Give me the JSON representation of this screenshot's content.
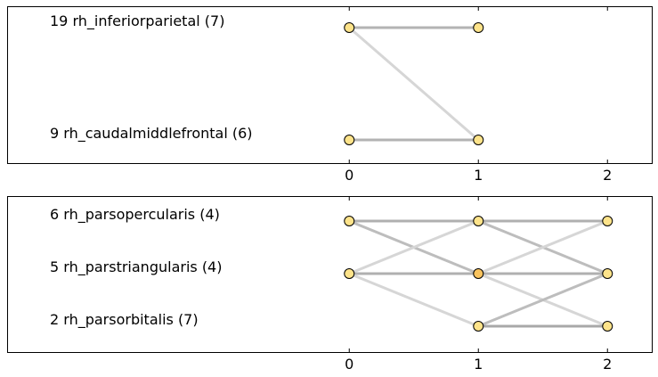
{
  "chart_data": [
    {
      "type": "bump",
      "x": [
        0,
        1,
        2
      ],
      "xlim": [
        -2.65,
        2.35
      ],
      "rows": [
        {
          "label": "19 rh_inferiorparietal (7)"
        },
        {
          "label": "9 rh_caudalmiddlefrontal (6)"
        }
      ],
      "nodes": [
        {
          "x": 0,
          "row": 0,
          "color": "#fde38a"
        },
        {
          "x": 1,
          "row": 0,
          "color": "#fde38a"
        },
        {
          "x": 0,
          "row": 1,
          "color": "#fde38a"
        },
        {
          "x": 1,
          "row": 1,
          "color": "#fde38a"
        }
      ],
      "edges": [
        {
          "from": [
            0,
            0
          ],
          "to": [
            1,
            0
          ],
          "color": "#b3b3b3"
        },
        {
          "from": [
            0,
            0
          ],
          "to": [
            1,
            1
          ],
          "color": "#d6d6d6"
        },
        {
          "from": [
            0,
            1
          ],
          "to": [
            1,
            1
          ],
          "color": "#b3b3b3"
        }
      ],
      "xticks": [
        "0",
        "1",
        "2"
      ]
    },
    {
      "type": "bump",
      "x": [
        0,
        1,
        2
      ],
      "xlim": [
        -2.65,
        2.35
      ],
      "rows": [
        {
          "label": "6 rh_parsopercularis (4)"
        },
        {
          "label": "5 rh_parstriangularis (4)"
        },
        {
          "label": "2 rh_parsorbitalis (7)"
        }
      ],
      "nodes": [
        {
          "x": 0,
          "row": 0,
          "color": "#fde38a"
        },
        {
          "x": 1,
          "row": 0,
          "color": "#fde38a"
        },
        {
          "x": 2,
          "row": 0,
          "color": "#fde38a"
        },
        {
          "x": 0,
          "row": 1,
          "color": "#fde38a"
        },
        {
          "x": 1,
          "row": 1,
          "color": "#f9c35e"
        },
        {
          "x": 2,
          "row": 1,
          "color": "#fde38a"
        },
        {
          "x": 1,
          "row": 2,
          "color": "#fde38a"
        },
        {
          "x": 2,
          "row": 2,
          "color": "#fde38a"
        }
      ],
      "edges": [
        {
          "from": [
            0,
            0
          ],
          "to": [
            1,
            0
          ],
          "color": "#b0b0b0"
        },
        {
          "from": [
            0,
            0
          ],
          "to": [
            1,
            1
          ],
          "color": "#bdbdbd"
        },
        {
          "from": [
            0,
            1
          ],
          "to": [
            1,
            0
          ],
          "color": "#d6d6d6"
        },
        {
          "from": [
            0,
            1
          ],
          "to": [
            1,
            1
          ],
          "color": "#b0b0b0"
        },
        {
          "from": [
            0,
            1
          ],
          "to": [
            1,
            2
          ],
          "color": "#d6d6d6"
        },
        {
          "from": [
            1,
            0
          ],
          "to": [
            2,
            0
          ],
          "color": "#b0b0b0"
        },
        {
          "from": [
            1,
            0
          ],
          "to": [
            2,
            1
          ],
          "color": "#bdbdbd"
        },
        {
          "from": [
            1,
            1
          ],
          "to": [
            2,
            0
          ],
          "color": "#d6d6d6"
        },
        {
          "from": [
            1,
            1
          ],
          "to": [
            2,
            1
          ],
          "color": "#b0b0b0"
        },
        {
          "from": [
            1,
            1
          ],
          "to": [
            2,
            2
          ],
          "color": "#d6d6d6"
        },
        {
          "from": [
            1,
            2
          ],
          "to": [
            2,
            1
          ],
          "color": "#bdbdbd"
        },
        {
          "from": [
            1,
            2
          ],
          "to": [
            2,
            2
          ],
          "color": "#a8a8a8"
        }
      ],
      "xticks": [
        "0",
        "1",
        "2"
      ]
    }
  ]
}
